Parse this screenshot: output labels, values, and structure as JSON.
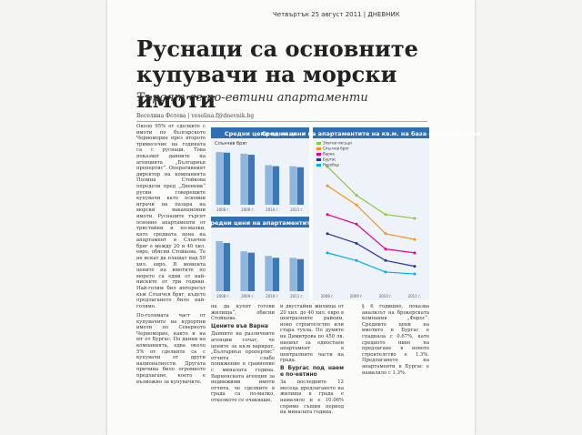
{
  "header": "Четвъртък 25 август 2011 | ДНЕВНИК",
  "title": "Руснаци са основните купувачи на морски имоти",
  "subtitle": "Търсят се по-евтини апартаменти",
  "byline": "Веселина Фотева | veselina.f@dnevnik.bg",
  "columns": [
    "Около 95% от сделките с имоти по българското Черноморие през второто тримесечие на годината са с руснаци. Това показват данните на агенцията „Българиън пропертис“. Оперативният директор на компанията Полина Стойкова определи пред „Дневник“ руски говорещите купувачи като основни играчи на пазара на морски ваканционни имоти. Руснаците търсят основно апартаменти от тристайни и по-малки, като средната цена на апартамент в Слънчев бряг е между 20 и 40 хил. евро, обясни Стойкова. Те не искат да плащат над 50 хил. евро. В момента цените на имотите по морето са едни от най-ниските от три години. Най-голям бил интересът към Слънчев бряг, където предлагането било най-голямо.",
    "По-голямата част от купувачите на курортни имоти по Северното Черноморие, както и на юг от Бургас. По данни на компанията, едва около 5% от сделките са с купувачи от други националности. Другата причина било огромното предлагане, което е възможно за купувачите.",
    "на да купят готови жилища“, обясни Стойкова.",
    "Данните на различните агенции сочат, че цените за кв.м варират. „Българиън пропертис“ отчита слабо понижение в сравнение с миналата година. Варненската агенция за недвижими имоти отчита, че сделките в града са по-малко, отколкото се очакваше.",
    "и двустайни жилища от 20 хил. до 40 хил. евро в централните райони, ново строителство или стара тухла. По думите на Димитрова по 450 лв. наемът за едностаен апартамент в централните части на града.",
    "За последните 12 месеца предлагането на жилища в града е намаляло и е 10.06% спрямо същия период на миналата година.",
    "§ 6 годишно, показва анализът на брокерската компания „Форос“. Средните цени на имотите в Бургас е спаднала с 0.67%, като средното ниво на предлагане в новото строителство е 1.3%. Предлагането на апартаменти в Бургас е намаляло с 1.3%."
  ],
  "headings": [
    "Цените във Варна",
    "В Бургас под наем е по-евтино"
  ],
  "chart_sqm": {
    "type": "bar",
    "title": "Средни цени на кв.м",
    "label": "Слънчев бряг",
    "categories": [
      "2008 г.",
      "2009 г.",
      "2010 г.",
      "2011 г."
    ],
    "series": [
      {
        "color": "#8fb7dd",
        "values": [
          1010,
          980,
          760,
          740
        ]
      },
      {
        "color": "#3d78b8",
        "values": [
          1000,
          960,
          740,
          720
        ]
      }
    ],
    "ylim": [
      0,
      1100
    ]
  },
  "chart_apt": {
    "type": "bar",
    "title": "Средни цени на апартаментите",
    "categories": [
      "2008 г.",
      "2009 г.",
      "2010 г.",
      "2011 г."
    ],
    "series": [
      {
        "color": "#8fb7dd",
        "values": [
          78000,
          62000,
          55000,
          52000
        ]
      },
      {
        "color": "#3d78b8",
        "values": [
          75000,
          60000,
          52000,
          50000
        ]
      }
    ],
    "ylim": [
      0,
      85000
    ]
  },
  "chart_line": {
    "type": "line",
    "title": "Средни цени на апартаментите на кв.м. на база оферттни цени",
    "categories": [
      "2008 г.",
      "2009 г.",
      "2010 г.",
      "2011 г."
    ],
    "series": [
      {
        "name": "Златни пясъци",
        "color": "#8dc63f",
        "values": [
          1250,
          1100,
          1000,
          980
        ]
      },
      {
        "name": "Слънчев бряг",
        "color": "#f7941d",
        "values": [
          1150,
          1050,
          900,
          870
        ]
      },
      {
        "name": "Варна",
        "color": "#ec008c",
        "values": [
          1000,
          950,
          820,
          800
        ]
      },
      {
        "name": "Бургас",
        "color": "#2e3192",
        "values": [
          900,
          850,
          760,
          730
        ]
      },
      {
        "name": "Несебър",
        "color": "#00aeef",
        "values": [
          800,
          760,
          700,
          690
        ]
      }
    ],
    "ylim": [
      600,
      1350
    ]
  }
}
